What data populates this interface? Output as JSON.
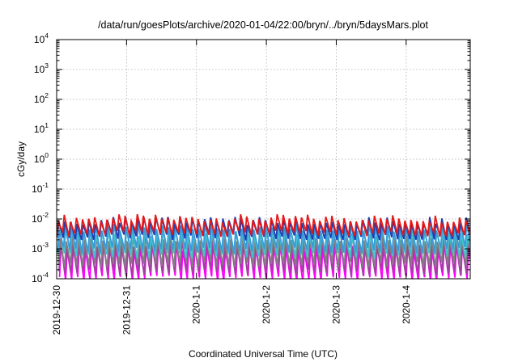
{
  "chart_data": {
    "type": "line",
    "title": "/data/run/goesPlots/archive/2020-01-04/22:00/bryn/../bryn/5daysMars.plot",
    "xlabel": "Coordinated Universal Time (UTC)",
    "ylabel": "cGy/day",
    "y_scale": "log",
    "ylim_exponents": [
      -4,
      4
    ],
    "y_tick_labels": [
      {
        "base": "10",
        "exp": "4"
      },
      {
        "base": "10",
        "exp": "3"
      },
      {
        "base": "10",
        "exp": "2"
      },
      {
        "base": "10",
        "exp": "1"
      },
      {
        "base": "10",
        "exp": "0"
      },
      {
        "base": "10",
        "exp": "-1"
      },
      {
        "base": "10",
        "exp": "-2"
      },
      {
        "base": "10",
        "exp": "-3"
      },
      {
        "base": "10",
        "exp": "-4"
      }
    ],
    "x_range": [
      "2019-12-30T00:00",
      "2020-01-04T22:00"
    ],
    "x_tick_labels": [
      "2019-12-30",
      "2019-12-31",
      "2020-1-1",
      "2020-1-2",
      "2020-1-3",
      "2020-1-4"
    ],
    "grid": true,
    "legend": "none",
    "pattern": "sawtooth",
    "cycles": 68,
    "series": [
      {
        "color": "#e41a1c",
        "peak": 0.0105,
        "trough": 0.0032
      },
      {
        "color": "#1f3fb0",
        "peak": 0.0085,
        "trough": 0.0024
      },
      {
        "color": "#3a9ad9",
        "peak": 0.0052,
        "trough": 0.0009
      },
      {
        "color": "#40c4d0",
        "peak": 0.0036,
        "trough": 0.0006
      },
      {
        "color": "#808080",
        "peak": 0.0024,
        "trough": 0.0003
      },
      {
        "color": "#a040a0",
        "peak": 0.0016,
        "trough": 0.00016
      },
      {
        "color": "#ff00ff",
        "peak": 0.00115,
        "trough": 0.0001
      }
    ]
  }
}
